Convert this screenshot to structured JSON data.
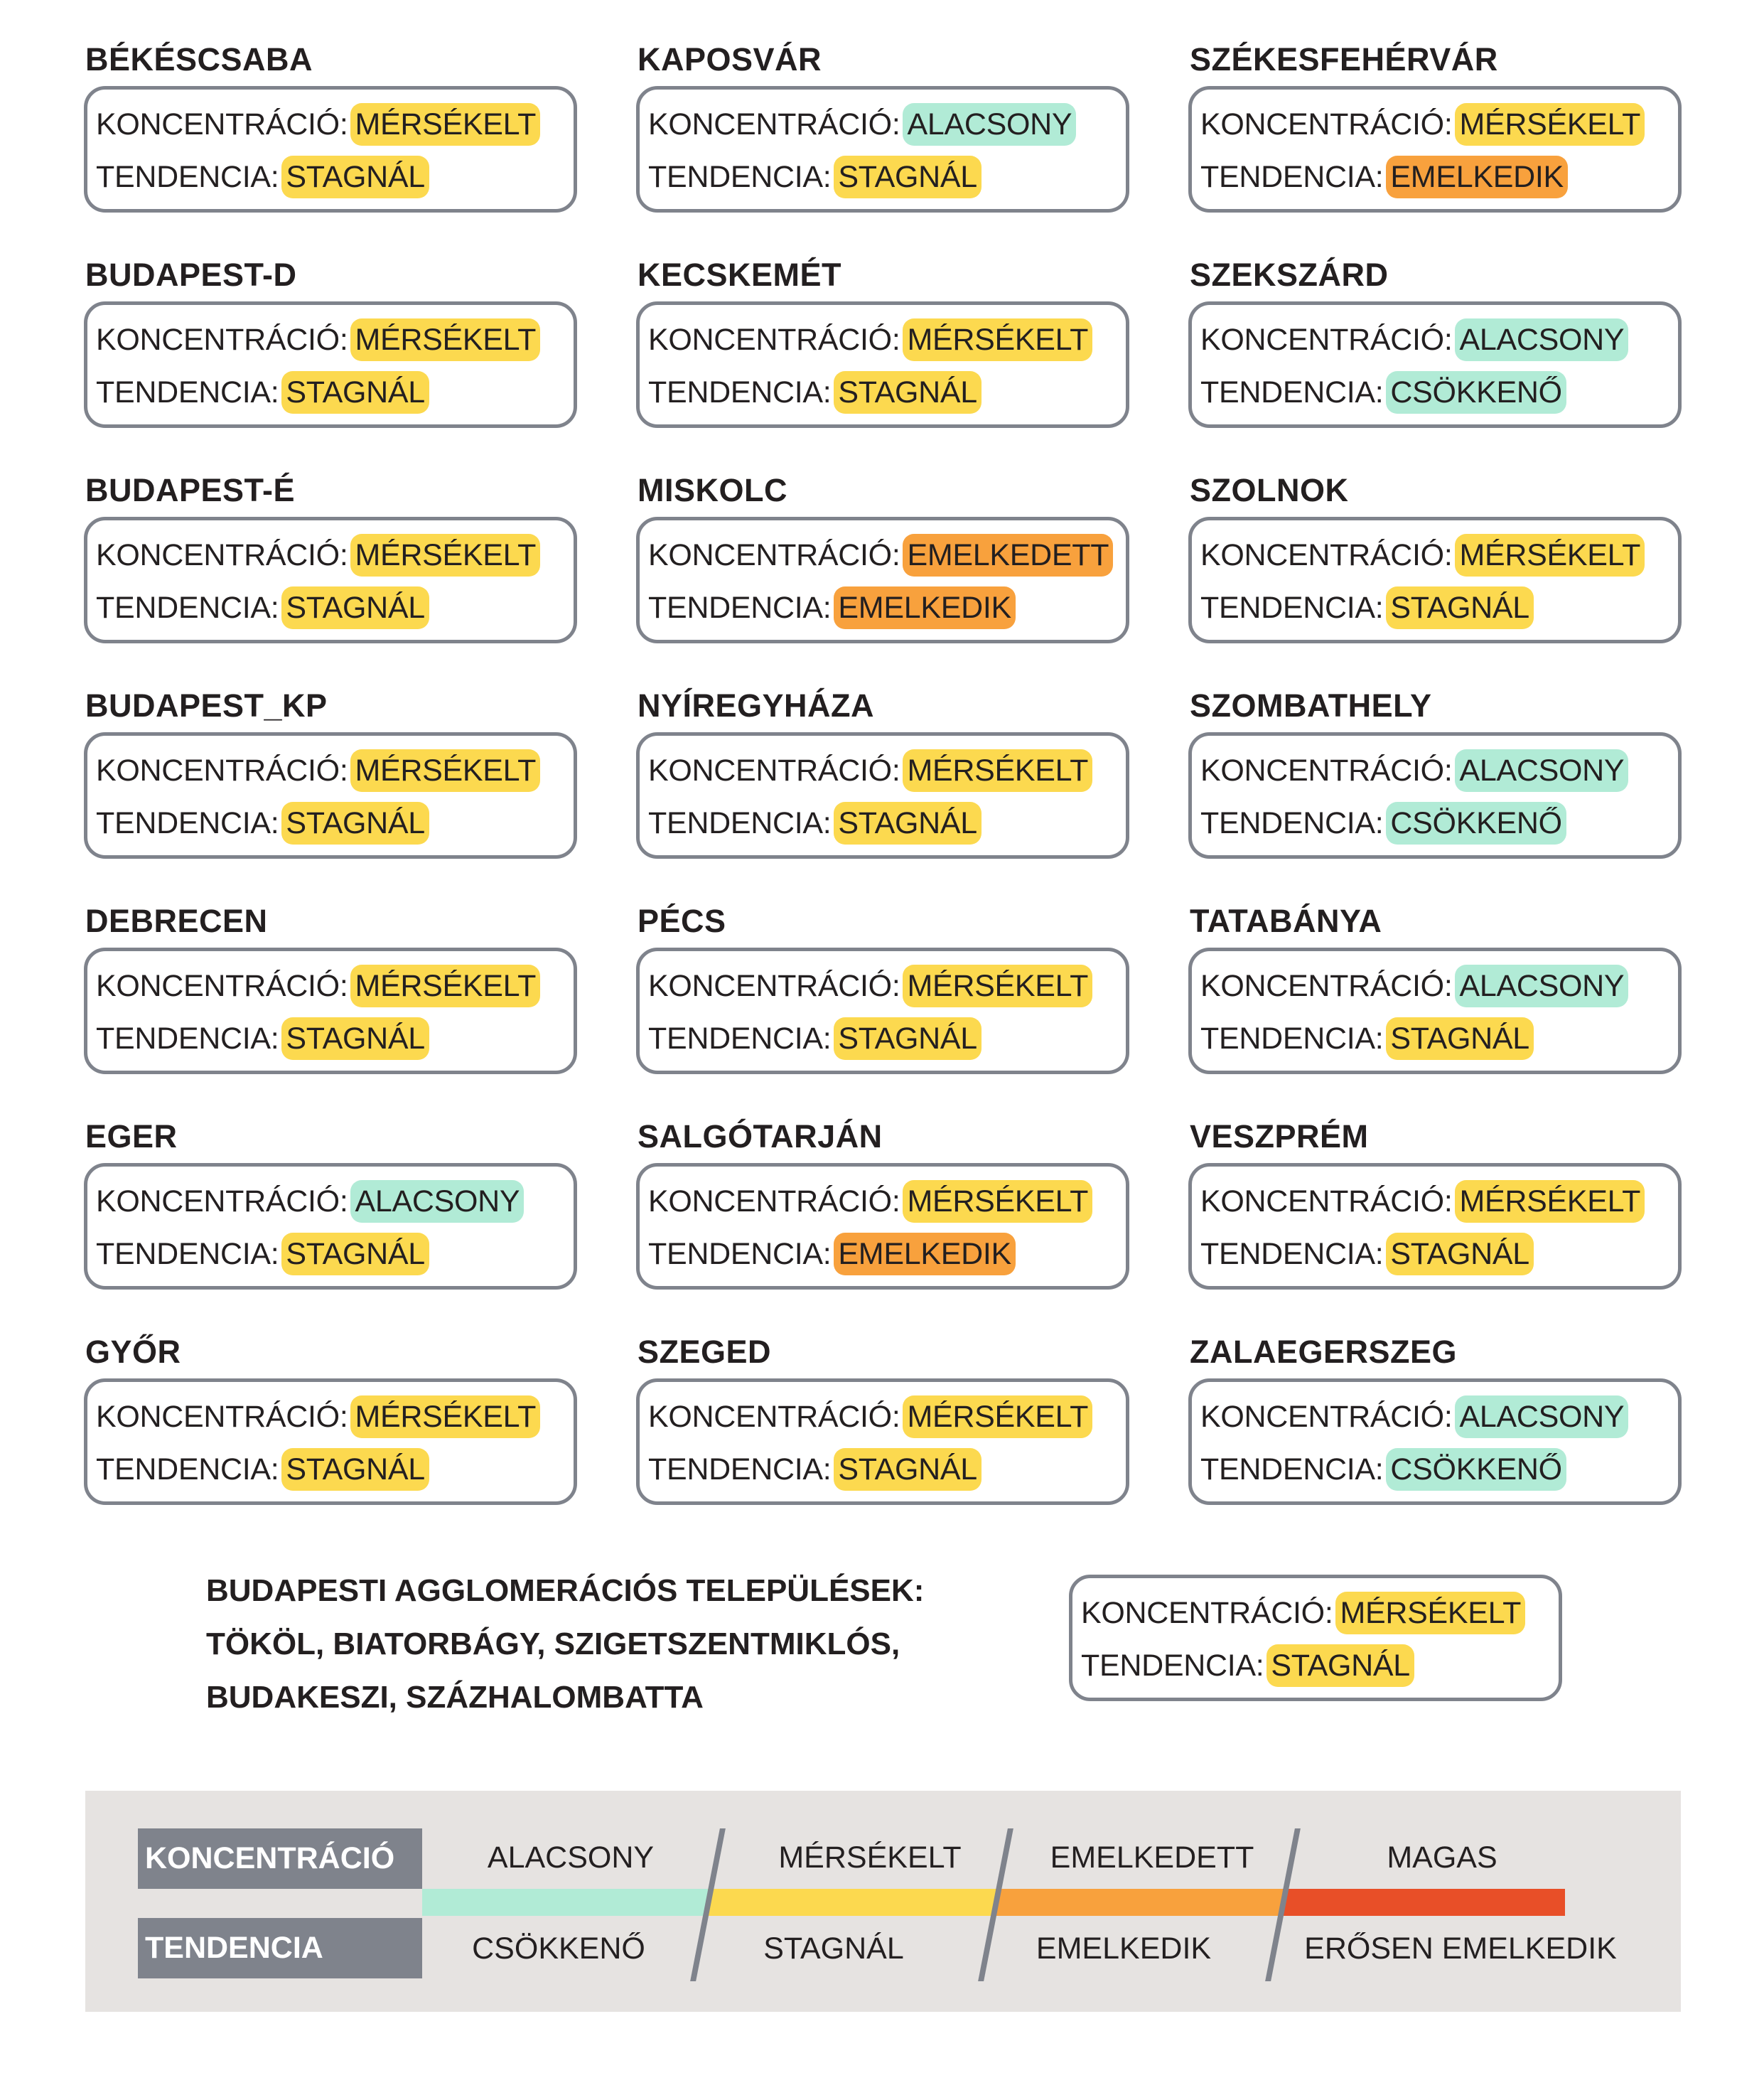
{
  "labels": {
    "concentration": "KONCENTRÁCIÓ:",
    "trend": "TENDENCIA:"
  },
  "colors": {
    "ALACSONY": "#b1ebd6",
    "MÉRSÉKELT": "#fcd94f",
    "EMELKEDETT": "#f8a13d",
    "MAGAS": "#e84f28",
    "CSÖKKENŐ": "#b1ebd6",
    "STAGNÁL": "#fcd94f",
    "EMELKEDIK": "#f8a13d",
    "ERŐSEN EMELKEDIK": "#e84f28"
  },
  "cities": [
    {
      "name": "BÉKÉSCSABA",
      "concentration": "MÉRSÉKELT",
      "trend": "STAGNÁL"
    },
    {
      "name": "KAPOSVÁR",
      "concentration": "ALACSONY",
      "trend": "STAGNÁL"
    },
    {
      "name": "SZÉKESFEHÉRVÁR",
      "concentration": "MÉRSÉKELT",
      "trend": "EMELKEDIK"
    },
    {
      "name": "BUDAPEST-D",
      "concentration": "MÉRSÉKELT",
      "trend": "STAGNÁL"
    },
    {
      "name": "KECSKEMÉT",
      "concentration": "MÉRSÉKELT",
      "trend": "STAGNÁL"
    },
    {
      "name": "SZEKSZÁRD",
      "concentration": "ALACSONY",
      "trend": "CSÖKKENŐ"
    },
    {
      "name": "BUDAPEST-É",
      "concentration": "MÉRSÉKELT",
      "trend": "STAGNÁL"
    },
    {
      "name": "MISKOLC",
      "concentration": "EMELKEDETT",
      "trend": "EMELKEDIK"
    },
    {
      "name": "SZOLNOK",
      "concentration": "MÉRSÉKELT",
      "trend": "STAGNÁL"
    },
    {
      "name": "BUDAPEST_KP",
      "concentration": "MÉRSÉKELT",
      "trend": "STAGNÁL"
    },
    {
      "name": "NYÍREGYHÁZA",
      "concentration": "MÉRSÉKELT",
      "trend": "STAGNÁL"
    },
    {
      "name": "SZOMBATHELY",
      "concentration": "ALACSONY",
      "trend": "CSÖKKENŐ"
    },
    {
      "name": "DEBRECEN",
      "concentration": "MÉRSÉKELT",
      "trend": "STAGNÁL"
    },
    {
      "name": "PÉCS",
      "concentration": "MÉRSÉKELT",
      "trend": "STAGNÁL"
    },
    {
      "name": "TATABÁNYA",
      "concentration": "ALACSONY",
      "trend": "STAGNÁL"
    },
    {
      "name": "EGER",
      "concentration": "ALACSONY",
      "trend": "STAGNÁL"
    },
    {
      "name": "SALGÓTARJÁN",
      "concentration": "MÉRSÉKELT",
      "trend": "EMELKEDIK"
    },
    {
      "name": "VESZPRÉM",
      "concentration": "MÉRSÉKELT",
      "trend": "STAGNÁL"
    },
    {
      "name": "GYŐR",
      "concentration": "MÉRSÉKELT",
      "trend": "STAGNÁL"
    },
    {
      "name": "SZEGED",
      "concentration": "MÉRSÉKELT",
      "trend": "STAGNÁL"
    },
    {
      "name": "ZALAEGERSZEG",
      "concentration": "ALACSONY",
      "trend": "CSÖKKENŐ"
    }
  ],
  "agglomeration": {
    "lines": [
      "BUDAPESTI AGGLOMERÁCIÓS TELEPÜLÉSEK:",
      "TÖKÖL, BIATORBÁGY, SZIGETSZENTMIKLÓS,",
      "BUDAKESZI, SZÁZHALOMBATTA"
    ],
    "concentration": "MÉRSÉKELT",
    "trend": "STAGNÁL"
  },
  "legend": {
    "concentration_title": "KONCENTRÁCIÓ",
    "trend_title": "TENDENCIA",
    "concentration_levels": [
      "ALACSONY",
      "MÉRSÉKELT",
      "EMELKEDETT",
      "MAGAS"
    ],
    "trend_levels": [
      "CSÖKKENŐ",
      "STAGNÁL",
      "EMELKEDIK",
      "ERŐSEN EMELKEDIK"
    ],
    "bar_colors": [
      "#b1ebd6",
      "#fcd94f",
      "#f8a13d",
      "#e84f28"
    ]
  }
}
